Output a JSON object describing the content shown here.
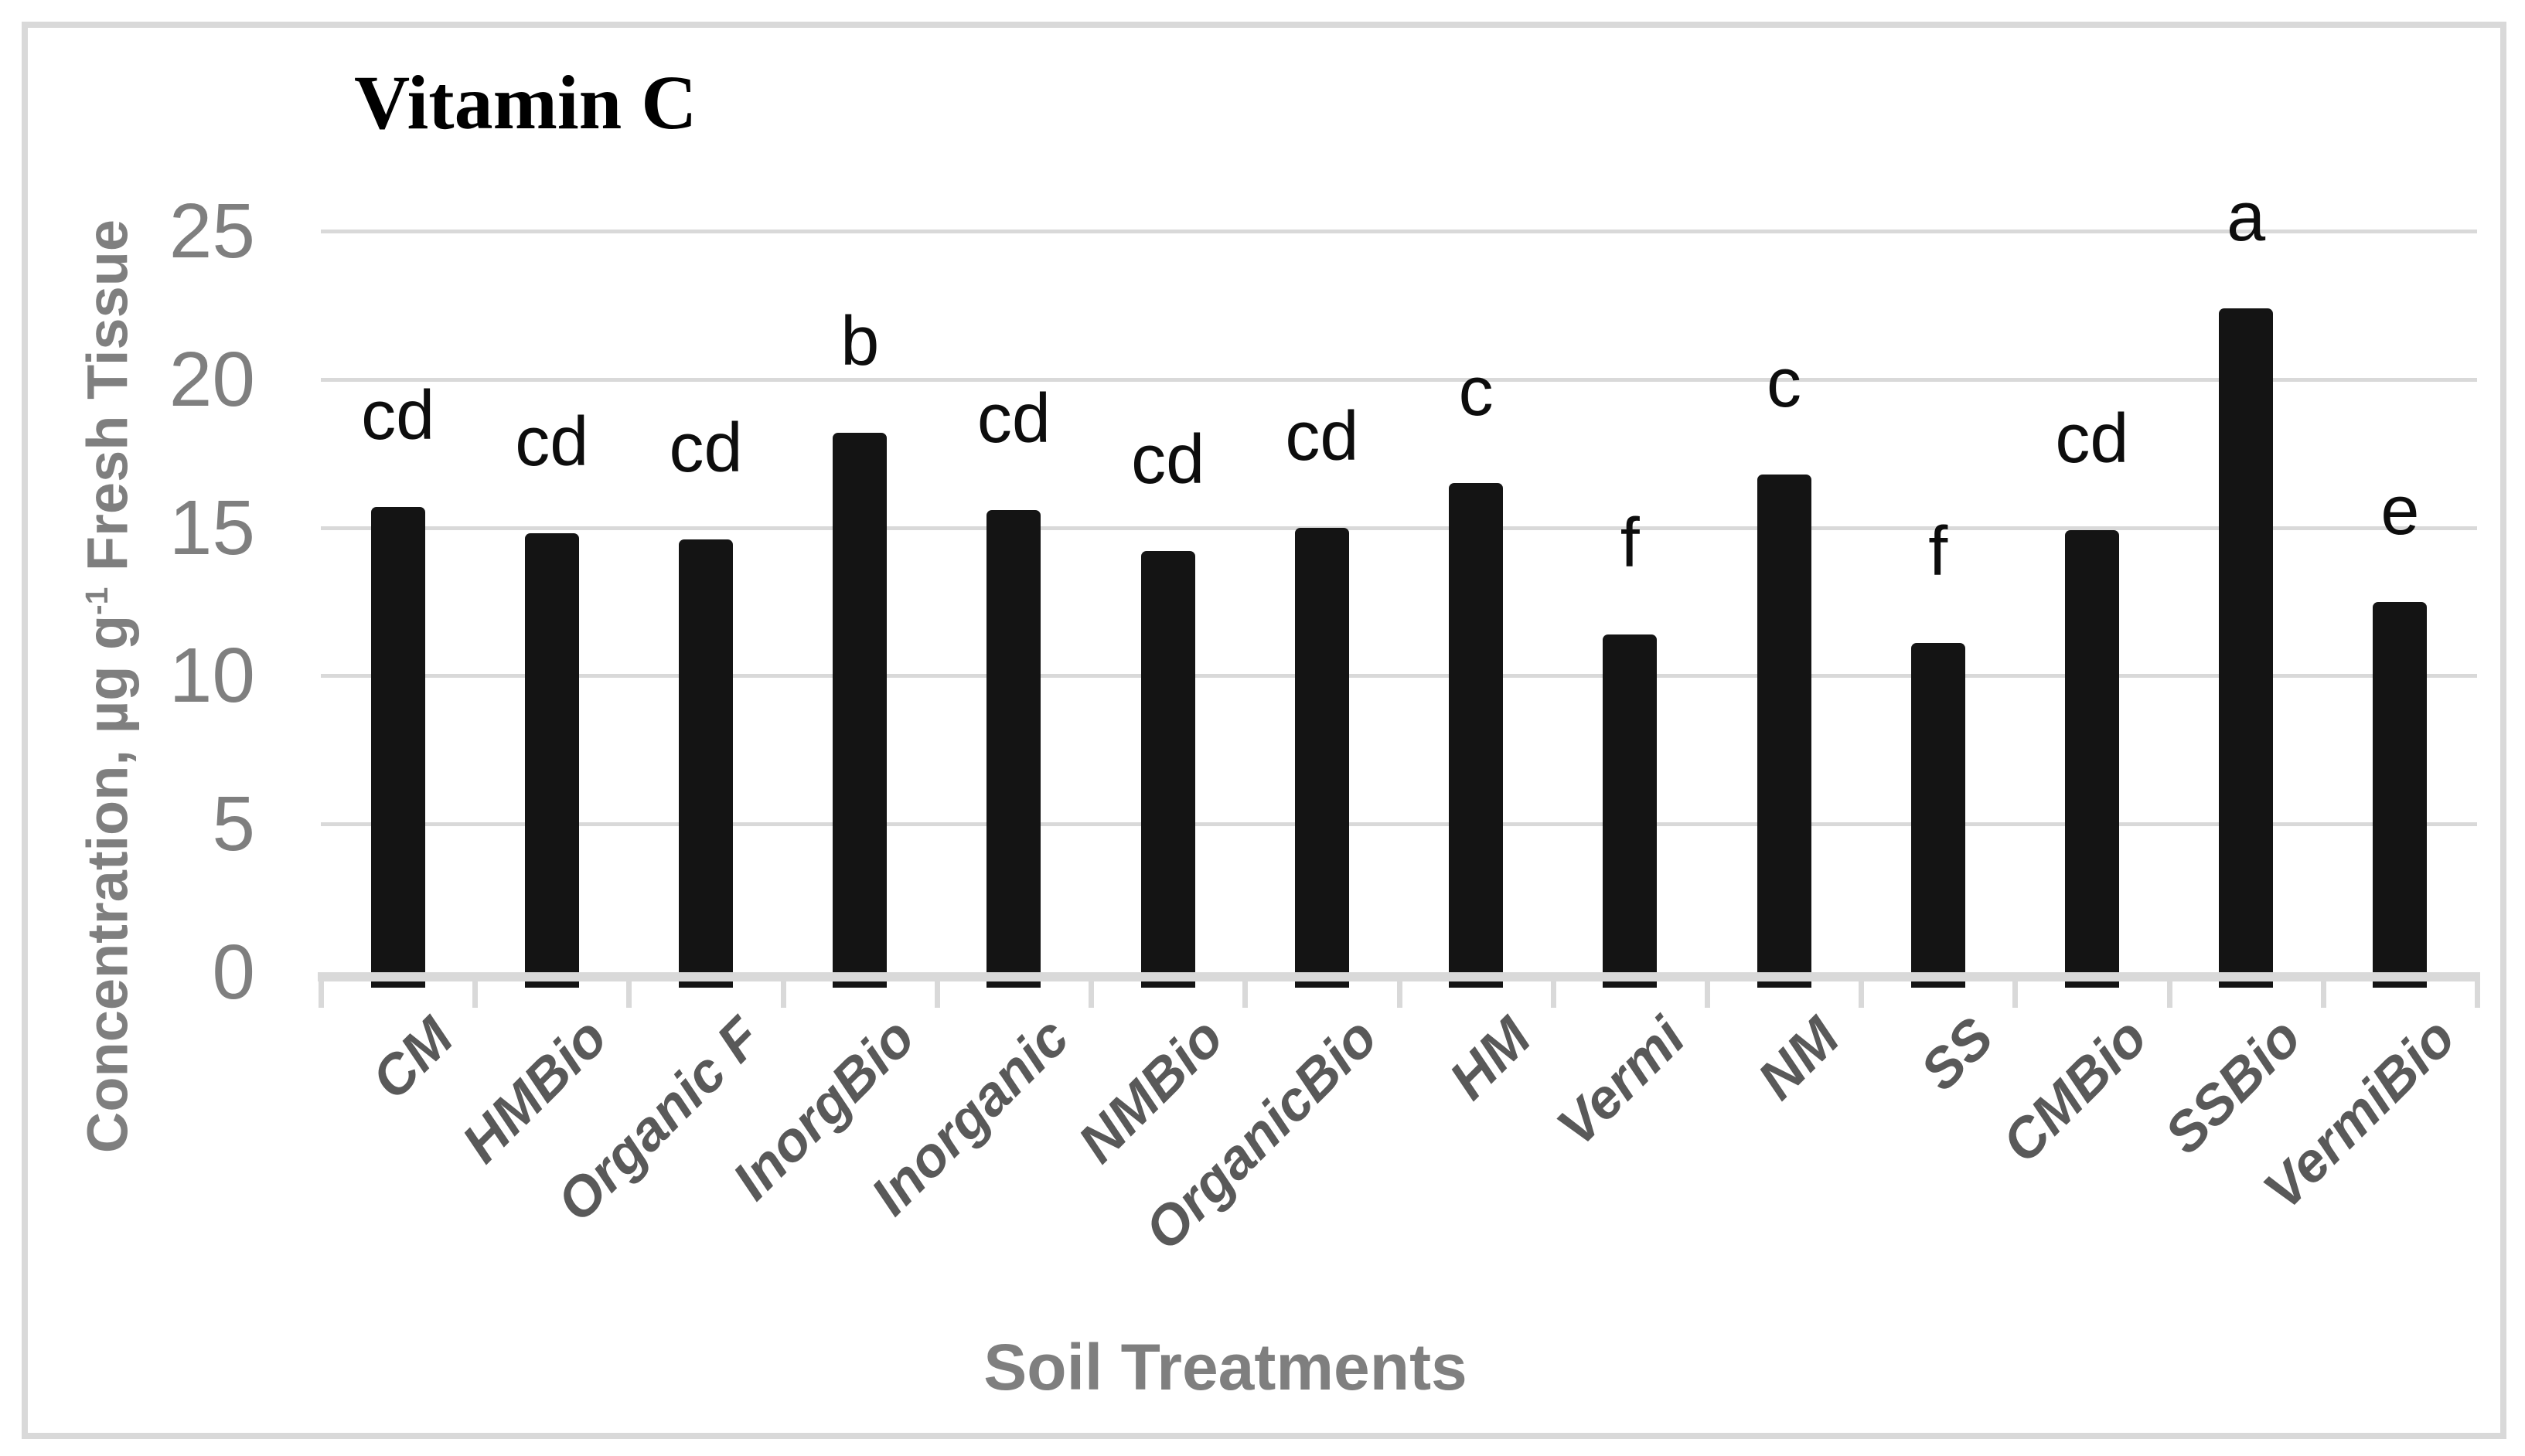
{
  "figure": {
    "title": "Vitamin C"
  },
  "chart_data": {
    "type": "bar",
    "title": "Vitamin C",
    "categories": [
      "CM",
      "HMBio",
      "Organic F",
      "InorgBio",
      "Inorganic",
      "NMBio",
      "OrganicBio",
      "HM",
      "Vermi",
      "NM",
      "SS",
      "CMBio",
      "SSBio",
      "VermiBio"
    ],
    "values": [
      15.7,
      14.8,
      14.6,
      18.2,
      15.6,
      14.2,
      15.0,
      16.5,
      11.4,
      16.8,
      11.1,
      14.9,
      22.4,
      12.5
    ],
    "bar_labels": [
      "cd",
      "cd",
      "cd",
      "b",
      "cd",
      "cd",
      "cd",
      "c",
      "f",
      "c",
      "f",
      "cd",
      "a",
      "e"
    ],
    "xlabel": "Soil Treatments",
    "ylabel": "Concentration, µg g-1 Fresh Tissue",
    "ylabel_parts": {
      "prefix": "Concentration, µg g",
      "superscript": "-1",
      "suffix": " Fresh Tissue"
    },
    "yticks": [
      0,
      5,
      10,
      15,
      20,
      25
    ],
    "ylim": [
      0,
      25
    ],
    "grid": "horizontal",
    "legend_position": "none",
    "colors": {
      "bar": "#141414",
      "grid": "#d9d9d9",
      "axis_band": "#d9d9d9",
      "border": "#d9d9d9",
      "axis_text": "#7f7f7f",
      "category_text": "#595959",
      "title_text": "#000000",
      "letter_text": "#0d0d0d"
    }
  }
}
